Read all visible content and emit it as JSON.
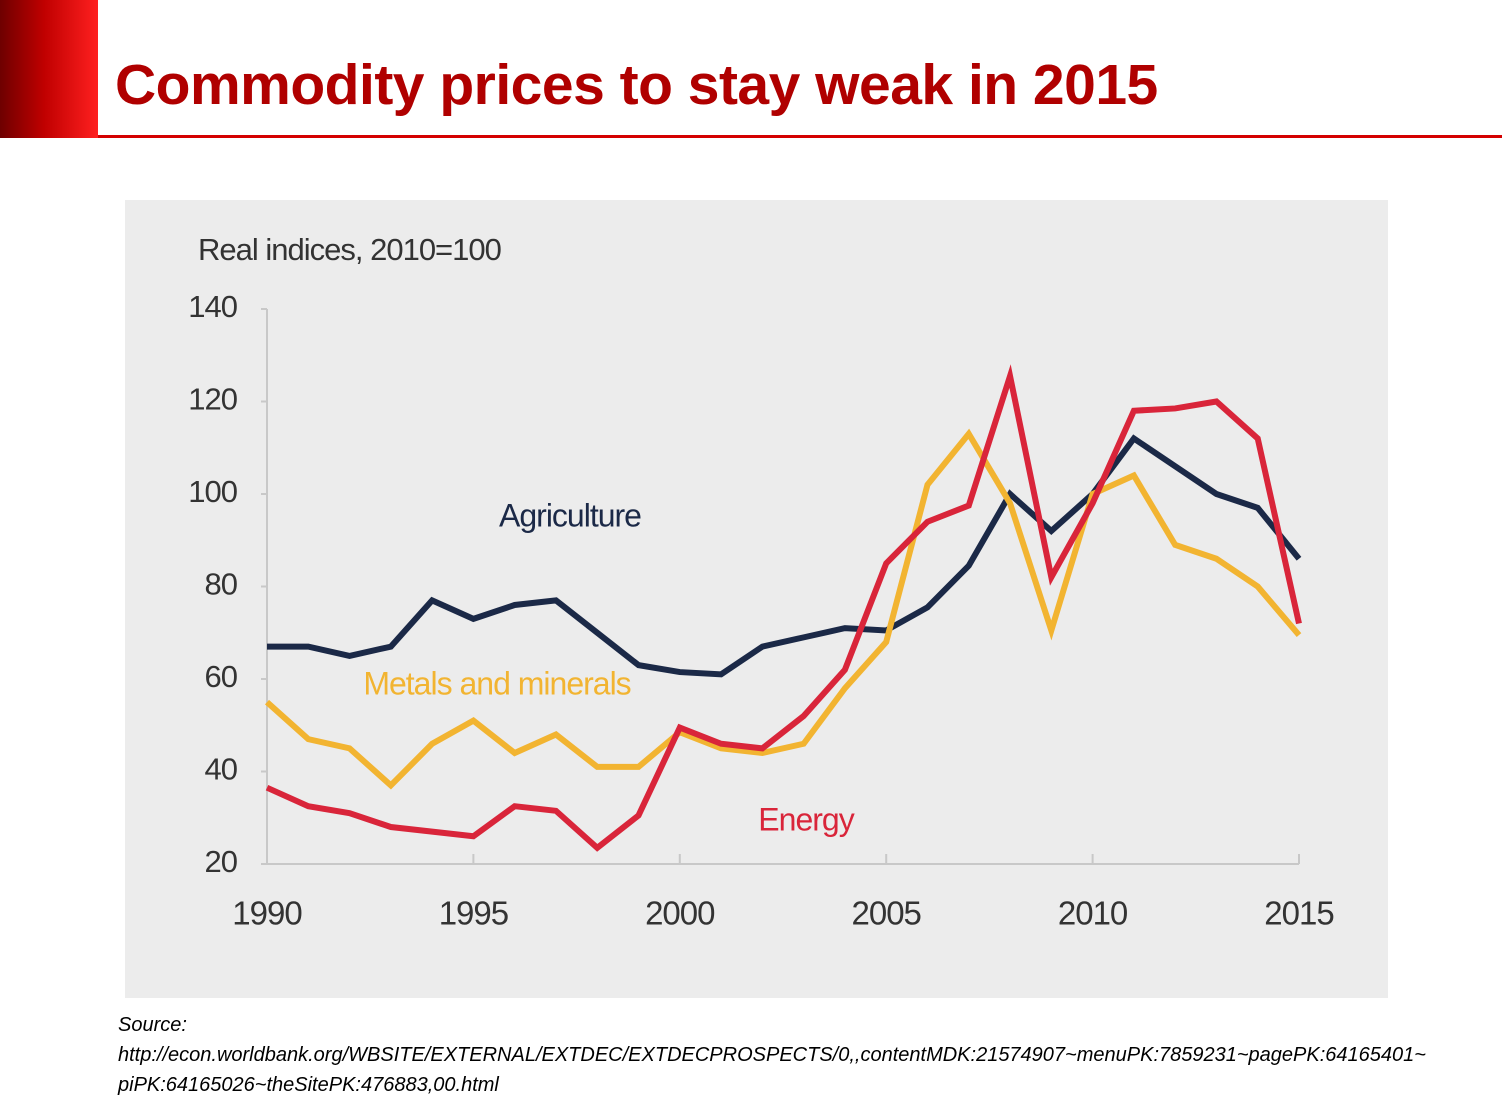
{
  "slide": {
    "title": "Commodity prices to stay weak in 2015",
    "source_label": "Source:",
    "source_url": "http://econ.worldbank.org/WBSITE/EXTERNAL/EXTDEC/EXTDECPROSPECTS/0,,contentMDK:21574907~menuPK:7859231~pagePK:64165401~piPK:64165026~theSitePK:476883,00.html"
  },
  "chart_data": {
    "type": "line",
    "ylabel": "Real indices, 2010=100",
    "x": [
      1990,
      1991,
      1992,
      1993,
      1994,
      1995,
      1996,
      1997,
      1998,
      1999,
      2000,
      2001,
      2002,
      2003,
      2004,
      2005,
      2006,
      2007,
      2008,
      2009,
      2010,
      2011,
      2012,
      2013,
      2014,
      2015
    ],
    "series": [
      {
        "name": "Agriculture",
        "color": "#1b2947",
        "values": [
          67,
          67,
          65,
          67,
          77,
          73,
          76,
          77,
          70,
          63,
          61.5,
          61,
          67,
          69,
          71,
          70.5,
          75.5,
          84.5,
          100,
          92,
          100,
          112,
          106,
          100,
          97,
          86
        ]
      },
      {
        "name": "Metals and minerals",
        "color": "#f2b431",
        "values": [
          55,
          47,
          45,
          37,
          46,
          51,
          44,
          48,
          41,
          41,
          48.5,
          45,
          44,
          46,
          58,
          68,
          102,
          113,
          98,
          70.5,
          100,
          104,
          89,
          86,
          80,
          69.5
        ]
      },
      {
        "name": "Energy",
        "color": "#d9253a",
        "values": [
          36.5,
          32.5,
          31,
          28,
          27,
          26,
          32.5,
          31.5,
          23.5,
          30.5,
          49.5,
          46,
          45,
          52,
          62,
          85,
          94,
          97.5,
          125.5,
          82,
          98,
          118,
          118.5,
          120,
          112,
          72
        ]
      }
    ],
    "xlim": [
      1990,
      2015
    ],
    "xticks": [
      1990,
      1995,
      2000,
      2005,
      2010,
      2015
    ],
    "ylim": [
      20,
      140
    ],
    "yticks": [
      20,
      40,
      60,
      80,
      100,
      120,
      140
    ],
    "grid": false
  }
}
